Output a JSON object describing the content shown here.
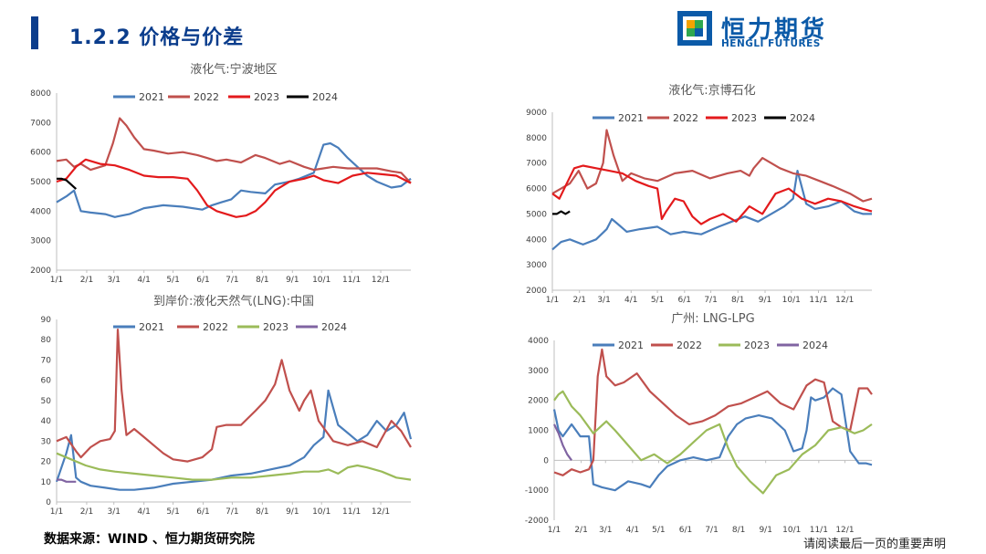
{
  "header": {
    "title": "1.2.2 价格与价差"
  },
  "logo": {
    "cn": "恒力期货",
    "en": "HENGLI FUTURES"
  },
  "footer": {
    "source": "数据来源：WIND 、恒力期货研究院",
    "disclaimer": "请阅读最后一页的重要声明"
  },
  "colors": {
    "2021": "#4a7ebb",
    "2022": "#c0504d",
    "2023_red": "#e31a1c",
    "2023_green": "#9bbb59",
    "2024_black": "#000000",
    "2024_purple": "#8064a2"
  },
  "chart_data": [
    {
      "id": "c1",
      "type": "line",
      "title": "液化气:宁波地区",
      "x_tick_labels": [
        "1/1",
        "2/1",
        "3/1",
        "4/1",
        "5/1",
        "6/1",
        "7/1",
        "8/1",
        "9/1",
        "10/1",
        "11/1",
        "12/1"
      ],
      "xlim": [
        0,
        365
      ],
      "ylim": [
        2000,
        8000
      ],
      "y_ticks": [
        2000,
        3000,
        4000,
        5000,
        6000,
        7000,
        8000
      ],
      "legend": "top",
      "series": [
        {
          "name": "2021",
          "color": "#4a7ebb",
          "x": [
            0,
            10,
            18,
            25,
            35,
            50,
            60,
            75,
            90,
            110,
            130,
            150,
            160,
            170,
            180,
            190,
            200,
            215,
            225,
            240,
            250,
            265,
            275,
            282,
            290,
            300,
            310,
            320,
            330,
            345,
            355,
            365
          ],
          "y": [
            4300,
            4500,
            4700,
            4000,
            3950,
            3900,
            3800,
            3900,
            4100,
            4200,
            4150,
            4050,
            4200,
            4300,
            4400,
            4700,
            4650,
            4600,
            4900,
            5000,
            5100,
            5300,
            6250,
            6300,
            6150,
            5800,
            5500,
            5200,
            5000,
            4800,
            4850,
            5100
          ]
        },
        {
          "name": "2022",
          "color": "#c0504d",
          "x": [
            0,
            10,
            18,
            25,
            35,
            50,
            58,
            65,
            72,
            80,
            90,
            100,
            115,
            130,
            145,
            155,
            165,
            175,
            190,
            205,
            215,
            230,
            240,
            255,
            265,
            275,
            285,
            300,
            315,
            330,
            345,
            355,
            365
          ],
          "y": [
            5700,
            5750,
            5500,
            5600,
            5400,
            5550,
            6300,
            7150,
            6900,
            6500,
            6100,
            6050,
            5950,
            6000,
            5900,
            5800,
            5700,
            5750,
            5650,
            5900,
            5800,
            5600,
            5700,
            5500,
            5400,
            5450,
            5500,
            5450,
            5450,
            5450,
            5350,
            5300,
            4950
          ]
        },
        {
          "name": "2023",
          "color": "#e31a1c",
          "x": [
            0,
            10,
            20,
            30,
            45,
            60,
            75,
            90,
            105,
            120,
            135,
            145,
            155,
            165,
            175,
            185,
            195,
            205,
            215,
            225,
            240,
            255,
            265,
            275,
            290,
            305,
            320,
            335,
            350,
            365
          ],
          "y": [
            5000,
            5100,
            5500,
            5750,
            5600,
            5550,
            5400,
            5200,
            5150,
            5150,
            5100,
            4700,
            4200,
            4000,
            3900,
            3800,
            3850,
            4000,
            4300,
            4700,
            5000,
            5100,
            5200,
            5050,
            4950,
            5200,
            5300,
            5250,
            5200,
            4950
          ]
        },
        {
          "name": "2024",
          "color": "#000000",
          "x": [
            0,
            5,
            10,
            15,
            20
          ],
          "y": [
            5100,
            5100,
            5050,
            4900,
            4750
          ]
        }
      ]
    },
    {
      "id": "c2",
      "type": "line",
      "title": "液化气:京博石化",
      "x_tick_labels": [
        "1/1",
        "2/1",
        "3/1",
        "4/1",
        "5/1",
        "6/1",
        "7/1",
        "8/1",
        "9/1",
        "10/1",
        "11/1",
        "12/1"
      ],
      "xlim": [
        0,
        365
      ],
      "ylim": [
        2000,
        9000
      ],
      "y_ticks": [
        2000,
        3000,
        4000,
        5000,
        6000,
        7000,
        8000,
        9000
      ],
      "legend": "top",
      "series": [
        {
          "name": "2021",
          "color": "#4a7ebb",
          "x": [
            0,
            10,
            20,
            35,
            50,
            62,
            68,
            75,
            85,
            100,
            120,
            135,
            150,
            170,
            190,
            205,
            220,
            235,
            250,
            265,
            275,
            280,
            290,
            300,
            315,
            330,
            345,
            355,
            365
          ],
          "y": [
            3600,
            3900,
            4000,
            3800,
            4000,
            4400,
            4800,
            4600,
            4300,
            4400,
            4500,
            4200,
            4300,
            4200,
            4500,
            4700,
            4900,
            4700,
            5000,
            5300,
            5600,
            6700,
            5400,
            5200,
            5300,
            5500,
            5100,
            5000,
            5000
          ]
        },
        {
          "name": "2022",
          "color": "#c0504d",
          "x": [
            0,
            10,
            20,
            30,
            40,
            50,
            58,
            62,
            70,
            80,
            90,
            105,
            120,
            140,
            160,
            180,
            200,
            215,
            225,
            230,
            240,
            250,
            260,
            275,
            290,
            305,
            320,
            340,
            355,
            365
          ],
          "y": [
            5800,
            6000,
            6200,
            6700,
            6000,
            6200,
            7000,
            8300,
            7300,
            6300,
            6600,
            6400,
            6300,
            6600,
            6700,
            6400,
            6600,
            6700,
            6500,
            6800,
            7200,
            7000,
            6800,
            6600,
            6500,
            6300,
            6100,
            5800,
            5500,
            5600
          ]
        },
        {
          "name": "2023",
          "color": "#e31a1c",
          "x": [
            0,
            8,
            15,
            25,
            35,
            50,
            65,
            80,
            95,
            110,
            120,
            125,
            130,
            140,
            150,
            160,
            170,
            180,
            195,
            210,
            225,
            240,
            255,
            270,
            285,
            300,
            315,
            330,
            345,
            355,
            365
          ],
          "y": [
            5800,
            5600,
            6100,
            6800,
            6900,
            6800,
            6700,
            6600,
            6300,
            6100,
            6000,
            4800,
            5100,
            5600,
            5500,
            4900,
            4600,
            4800,
            5000,
            4700,
            5300,
            5000,
            5800,
            6000,
            5600,
            5400,
            5600,
            5500,
            5300,
            5200,
            5100
          ]
        },
        {
          "name": "2024",
          "color": "#000000",
          "x": [
            0,
            5,
            10,
            15,
            20
          ],
          "y": [
            5000,
            5000,
            5100,
            5000,
            5100
          ]
        }
      ]
    },
    {
      "id": "c3",
      "type": "line",
      "title": "到岸价:液化天然气(LNG):中国",
      "x_tick_labels": [
        "1/1",
        "2/1",
        "3/1",
        "4/1",
        "5/1",
        "6/1",
        "7/1",
        "8/1",
        "9/1",
        "10/1",
        "11/1",
        "12/1"
      ],
      "xlim": [
        0,
        365
      ],
      "ylim": [
        0,
        90
      ],
      "y_ticks": [
        0,
        10,
        20,
        30,
        40,
        50,
        60,
        70,
        80,
        90
      ],
      "legend": "top",
      "series": [
        {
          "name": "2021",
          "color": "#4a7ebb",
          "x": [
            0,
            5,
            10,
            15,
            20,
            25,
            35,
            50,
            65,
            80,
            100,
            120,
            140,
            160,
            180,
            200,
            220,
            240,
            255,
            265,
            275,
            280,
            290,
            300,
            310,
            320,
            330,
            340,
            350,
            358,
            365
          ],
          "y": [
            10,
            17,
            24,
            33,
            12,
            10,
            8,
            7,
            6,
            6,
            7,
            9,
            10,
            11,
            13,
            14,
            16,
            18,
            22,
            28,
            32,
            55,
            38,
            34,
            30,
            33,
            40,
            35,
            38,
            44,
            31
          ]
        },
        {
          "name": "2022",
          "color": "#c0504d",
          "x": [
            0,
            10,
            20,
            25,
            35,
            45,
            55,
            60,
            63,
            67,
            72,
            80,
            90,
            100,
            110,
            120,
            135,
            150,
            160,
            165,
            175,
            190,
            205,
            215,
            225,
            232,
            240,
            250,
            255,
            262,
            270,
            285,
            300,
            315,
            330,
            345,
            355,
            365
          ],
          "y": [
            30,
            32,
            25,
            22,
            27,
            30,
            31,
            35,
            85,
            55,
            33,
            36,
            32,
            28,
            24,
            21,
            20,
            22,
            26,
            37,
            38,
            38,
            45,
            50,
            58,
            70,
            55,
            45,
            50,
            55,
            40,
            30,
            28,
            30,
            27,
            40,
            35,
            27
          ]
        },
        {
          "name": "2023",
          "color": "#9bbb59",
          "x": [
            0,
            15,
            30,
            45,
            60,
            80,
            100,
            120,
            140,
            160,
            180,
            200,
            220,
            240,
            255,
            270,
            280,
            290,
            300,
            310,
            320,
            335,
            350,
            365
          ],
          "y": [
            24,
            21,
            18,
            16,
            15,
            14,
            13,
            12,
            11,
            11,
            12,
            12,
            13,
            14,
            15,
            15,
            16,
            14,
            17,
            18,
            17,
            15,
            12,
            11
          ]
        },
        {
          "name": "2024",
          "color": "#8064a2",
          "x": [
            0,
            5,
            10,
            15,
            20
          ],
          "y": [
            11,
            11,
            10,
            10,
            10
          ]
        }
      ]
    },
    {
      "id": "c4",
      "type": "line",
      "title": "广州: LNG-LPG",
      "x_tick_labels": [
        "1/1",
        "2/1",
        "3/1",
        "4/1",
        "5/1",
        "6/1",
        "7/1",
        "8/1",
        "9/1",
        "10/1",
        "11/1",
        "12/1"
      ],
      "xlim": [
        0,
        365
      ],
      "ylim": [
        -2000,
        4000
      ],
      "y_ticks": [
        -2000,
        -1000,
        0,
        1000,
        2000,
        3000,
        4000
      ],
      "legend": "top",
      "series": [
        {
          "name": "2021",
          "color": "#4a7ebb",
          "x": [
            0,
            5,
            10,
            20,
            30,
            40,
            45,
            55,
            70,
            85,
            100,
            110,
            120,
            130,
            145,
            160,
            175,
            190,
            200,
            210,
            220,
            235,
            250,
            265,
            275,
            285,
            290,
            295,
            300,
            310,
            320,
            330,
            340,
            350,
            358,
            365
          ],
          "y": [
            1700,
            1000,
            800,
            1200,
            800,
            800,
            -800,
            -900,
            -1000,
            -700,
            -800,
            -900,
            -500,
            -200,
            0,
            100,
            0,
            100,
            800,
            1200,
            1400,
            1500,
            1400,
            1000,
            300,
            400,
            1000,
            2100,
            2000,
            2100,
            2400,
            2200,
            300,
            -100,
            -100,
            -150
          ]
        },
        {
          "name": "2022",
          "color": "#c0504d",
          "x": [
            0,
            10,
            20,
            30,
            40,
            45,
            50,
            55,
            60,
            70,
            80,
            95,
            110,
            125,
            140,
            155,
            170,
            185,
            200,
            215,
            230,
            245,
            260,
            275,
            290,
            300,
            310,
            320,
            330,
            340,
            350,
            360,
            365
          ],
          "y": [
            -400,
            -500,
            -300,
            -400,
            -300,
            0,
            2800,
            3700,
            2800,
            2500,
            2600,
            2900,
            2300,
            1900,
            1500,
            1200,
            1300,
            1500,
            1800,
            1900,
            2100,
            2300,
            1900,
            1700,
            2500,
            2700,
            2600,
            1300,
            1100,
            1000,
            2400,
            2400,
            2200
          ]
        },
        {
          "name": "2023",
          "color": "#9bbb59",
          "x": [
            0,
            5,
            10,
            20,
            30,
            45,
            60,
            70,
            85,
            100,
            115,
            130,
            145,
            160,
            175,
            190,
            200,
            210,
            225,
            240,
            255,
            270,
            285,
            300,
            315,
            330,
            345,
            355,
            365
          ],
          "y": [
            2000,
            2200,
            2300,
            1800,
            1500,
            900,
            1300,
            1000,
            500,
            0,
            200,
            -100,
            200,
            600,
            1000,
            1200,
            400,
            -200,
            -700,
            -1100,
            -500,
            -300,
            200,
            500,
            1000,
            1100,
            900,
            1000,
            1200
          ]
        },
        {
          "name": "2024",
          "color": "#8064a2",
          "x": [
            0,
            5,
            10,
            15,
            20
          ],
          "y": [
            1200,
            900,
            500,
            200,
            0
          ]
        }
      ]
    }
  ]
}
